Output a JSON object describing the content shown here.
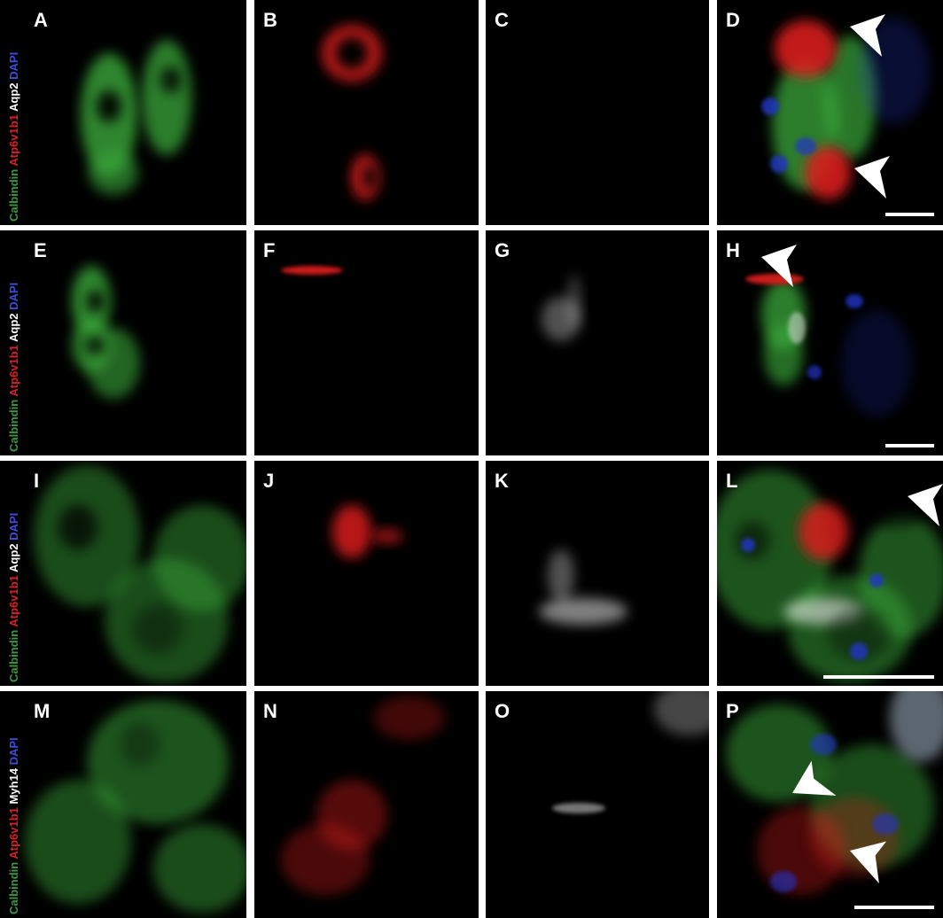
{
  "panels": [
    {
      "letter": "A"
    },
    {
      "letter": "B"
    },
    {
      "letter": "C"
    },
    {
      "letter": "D"
    },
    {
      "letter": "E"
    },
    {
      "letter": "F"
    },
    {
      "letter": "G"
    },
    {
      "letter": "H"
    },
    {
      "letter": "I"
    },
    {
      "letter": "J"
    },
    {
      "letter": "K"
    },
    {
      "letter": "L"
    },
    {
      "letter": "M"
    },
    {
      "letter": "N"
    },
    {
      "letter": "O"
    },
    {
      "letter": "P"
    }
  ],
  "rows": [
    {
      "label": [
        {
          "text": "Calbindin",
          "color": "#3c9a3c"
        },
        {
          "text": "Atp6v1b1",
          "color": "#e02020"
        },
        {
          "text": "Aqp2",
          "color": "#ffffff"
        },
        {
          "text": "DAPI",
          "color": "#3a4ee0"
        }
      ]
    },
    {
      "label": [
        {
          "text": "Calbindin",
          "color": "#3c9a3c"
        },
        {
          "text": "Atp6v1b1",
          "color": "#e02020"
        },
        {
          "text": "Aqp2",
          "color": "#ffffff"
        },
        {
          "text": "DAPI",
          "color": "#3a4ee0"
        }
      ]
    },
    {
      "label": [
        {
          "text": "Calbindin",
          "color": "#3c9a3c"
        },
        {
          "text": "Atp6v1b1",
          "color": "#e02020"
        },
        {
          "text": "Aqp2",
          "color": "#ffffff"
        },
        {
          "text": "DAPI",
          "color": "#3a4ee0"
        }
      ]
    },
    {
      "label": [
        {
          "text": "Calbindin",
          "color": "#3c9a3c"
        },
        {
          "text": "Atp6v1b1",
          "color": "#e02020"
        },
        {
          "text": "Myh14",
          "color": "#ffffff"
        },
        {
          "text": "DAPI",
          "color": "#3a4ee0"
        }
      ]
    }
  ]
}
